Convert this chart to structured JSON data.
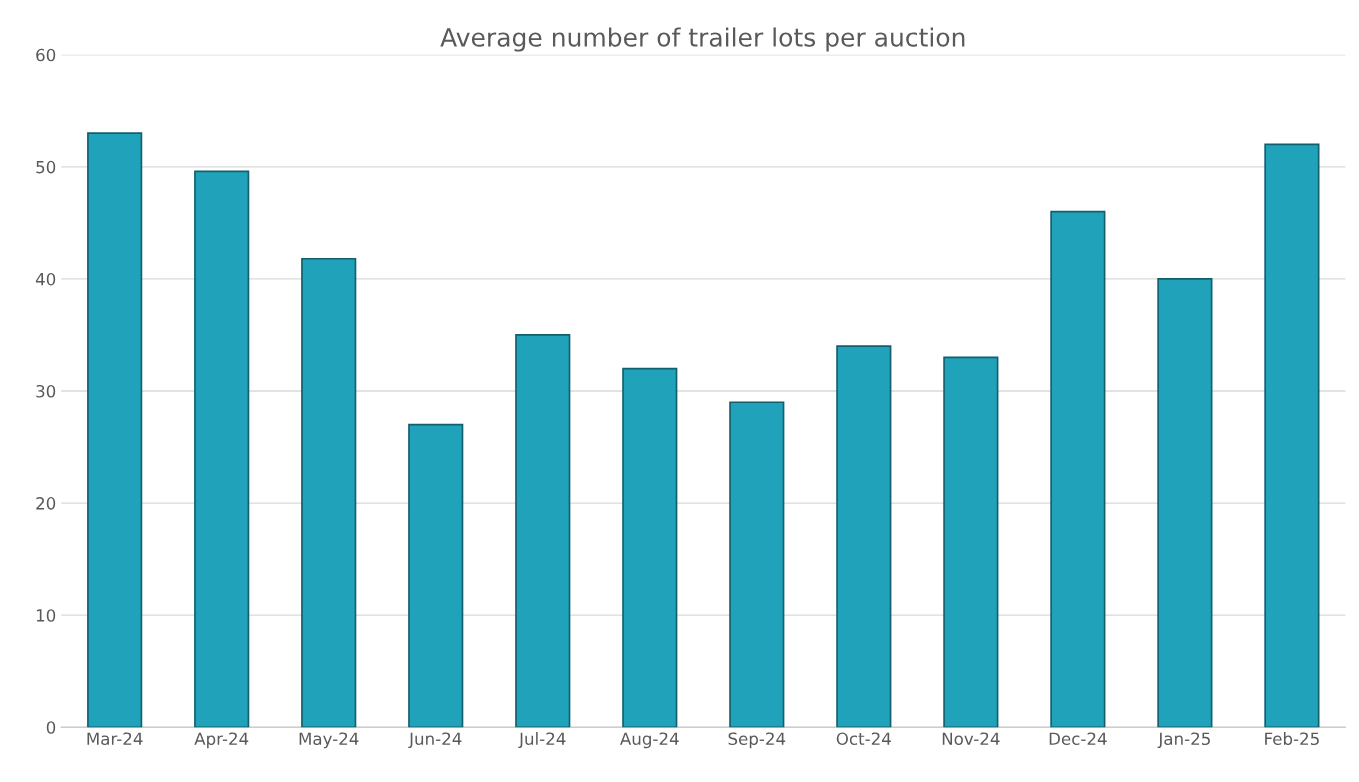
{
  "chart_data": {
    "type": "bar",
    "title": "Average number of trailer lots per auction",
    "categories": [
      "Mar-24",
      "Apr-24",
      "May-24",
      "Jun-24",
      "Jul-24",
      "Aug-24",
      "Sep-24",
      "Oct-24",
      "Nov-24",
      "Dec-24",
      "Jan-25",
      "Feb-25"
    ],
    "values": [
      53,
      49.6,
      41.8,
      27,
      35,
      32,
      29,
      34,
      33,
      46,
      40,
      52
    ],
    "color": "#20a3ba",
    "ylim": [
      0,
      60
    ],
    "yticks": [
      0,
      10,
      20,
      30,
      40,
      50,
      60
    ],
    "grid": "y"
  }
}
